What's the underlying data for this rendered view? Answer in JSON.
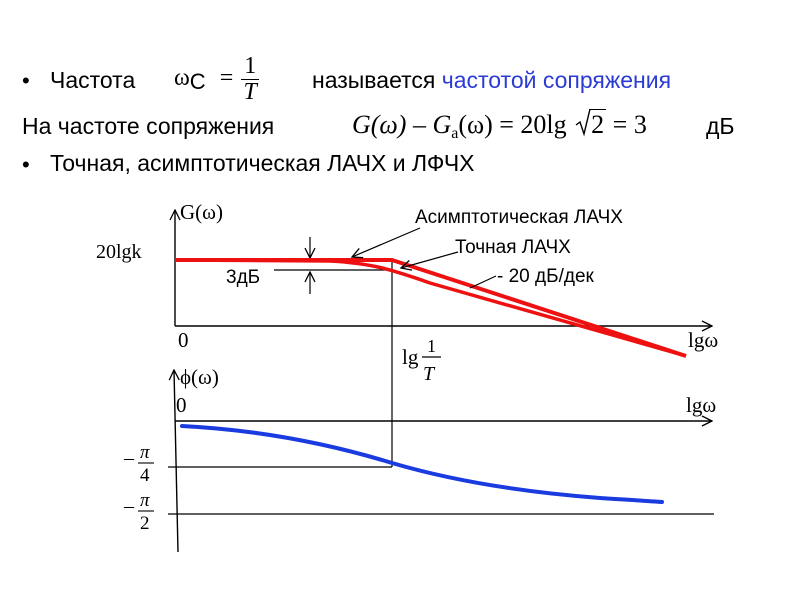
{
  "slide": {
    "bullet_char": "•",
    "line1": {
      "prefix": "Частота",
      "omega": "ω",
      "sub": "C",
      "eq": "=",
      "num": "1",
      "den": "T",
      "middle": "называется",
      "highlight": "частотой сопряжения"
    },
    "line2": {
      "prefix": "На частоте сопряжения",
      "formula_left": "G(ω) – G",
      "formula_sub": "a",
      "formula_mid": "(ω) = 20lg",
      "sqrt_arg": "2",
      "formula_right": "= 3",
      "unit": "дБ"
    },
    "line3": {
      "text": "Точная, асимптотическая ЛАЧХ и ЛФЧХ"
    }
  },
  "diagram": {
    "amp_axis_label": "G(ω)",
    "amp_y_mark": "20lgk",
    "amp_origin": "0",
    "amp_x_label": "lgω",
    "gap_label": "3дБ",
    "lg_label": "lg",
    "frac_num": "1",
    "frac_den": "T",
    "asymptotic_label": "Асимптотическая ЛАЧХ",
    "exact_label": "Точная ЛАЧХ",
    "slope_label": "- 20 дБ/дек",
    "phase_axis_label": "ϕ(ω)",
    "phase_origin": "0",
    "phase_x_label": "lgω",
    "pi4": {
      "sign": "–",
      "pi": "π",
      "den": "4"
    },
    "pi2": {
      "sign": "–",
      "pi": "π",
      "den": "2"
    },
    "colors": {
      "magnitude": "#ee1111",
      "phase": "#1a3be0",
      "axis": "#000000"
    }
  }
}
